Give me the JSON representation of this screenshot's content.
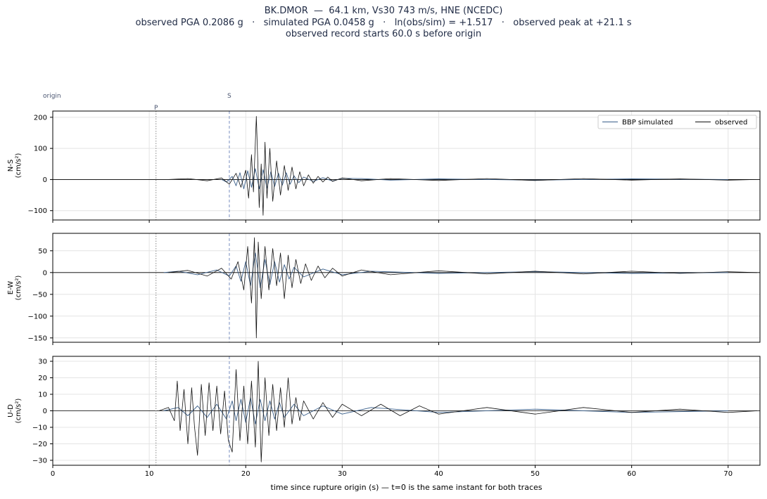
{
  "header": {
    "title_lines": [
      "BK.DMOR  —  64.1 km, Vs30 743 m/s, HNE (NCEDC)",
      "observed PGA 0.2086 g   ·   simulated PGA 0.0458 g   ·   ln(obs/sim) = +1.517   ·   observed peak at +21.1 s",
      "observed record starts 60.0 s before origin"
    ]
  },
  "colors": {
    "observed": "#111111",
    "simulated": "#3a5f8a",
    "p_marker": "#888888",
    "s_marker": "#7a8fc0",
    "grid": "#e4e4e4"
  },
  "chart_data": {
    "type": "line",
    "xlabel": "time since rupture origin (s)   —   t=0 is the same instant for both traces",
    "xlim": [
      0,
      73.3
    ],
    "xticks": [
      0,
      10,
      20,
      30,
      40,
      50,
      60,
      70
    ],
    "grid": true,
    "legend": {
      "placement": "top-right",
      "entries": [
        "BBP simulated",
        "observed"
      ]
    },
    "markers": [
      {
        "label": "origin",
        "t": 0,
        "style": "none"
      },
      {
        "label": "P",
        "t": 10.7,
        "style": "dotted"
      },
      {
        "label": "S",
        "t": 18.3,
        "style": "dashed"
      }
    ],
    "panels": [
      {
        "ylabel": "N-S\n(cm/s²)",
        "ylim": [
          -130,
          220
        ],
        "yticks": [
          -100,
          0,
          100,
          200
        ],
        "series": [
          {
            "name": "BBP simulated",
            "key": "simulated",
            "x": [
              17.5,
              18,
              18.6,
              19,
              19.4,
              19.8,
              20.2,
              20.6,
              21,
              21.4,
              21.8,
              22.2,
              22.6,
              23,
              23.4,
              23.8,
              24.2,
              24.6,
              25,
              25.5,
              26,
              27,
              28,
              29,
              30,
              32,
              35,
              40,
              50,
              60,
              70
            ],
            "y": [
              0,
              -8,
              10,
              -20,
              22,
              -30,
              28,
              -25,
              35,
              -30,
              32,
              -28,
              25,
              -22,
              20,
              -18,
              22,
              -15,
              12,
              -10,
              8,
              -6,
              6,
              -5,
              4,
              3,
              -2,
              2,
              -2,
              2,
              0
            ]
          },
          {
            "name": "observed",
            "key": "observed",
            "x": [
              12,
              14,
              16,
              17.5,
              18.3,
              19,
              19.5,
              20,
              20.3,
              20.6,
              20.8,
              21.1,
              21.4,
              21.6,
              21.8,
              22,
              22.2,
              22.5,
              22.8,
              23.2,
              23.6,
              24,
              24.4,
              24.8,
              25.2,
              25.6,
              26,
              26.5,
              27,
              27.5,
              28,
              28.5,
              29,
              30,
              32,
              35,
              40,
              45,
              50,
              55,
              60,
              65,
              70,
              73
            ],
            "y": [
              0,
              3,
              -4,
              5,
              -15,
              20,
              -25,
              30,
              -60,
              80,
              -40,
              203,
              -90,
              50,
              -115,
              120,
              -60,
              100,
              -70,
              60,
              -50,
              45,
              -35,
              40,
              -30,
              25,
              -20,
              15,
              -12,
              10,
              -8,
              8,
              -6,
              5,
              -4,
              3,
              -3,
              3,
              -3,
              3,
              -2,
              2,
              -2,
              0
            ]
          }
        ]
      },
      {
        "ylabel": "E-W\n(cm/s²)",
        "ylim": [
          -160,
          90
        ],
        "yticks": [
          -150,
          -100,
          -50,
          0,
          50
        ],
        "series": [
          {
            "name": "BBP simulated",
            "key": "simulated",
            "x": [
              11.5,
              13,
              15,
              17,
              18.3,
              19,
              19.5,
              20,
              20.5,
              21,
              21.5,
              22,
              22.5,
              23,
              23.5,
              24,
              24.5,
              25,
              26,
              28,
              30,
              33,
              40,
              50,
              60,
              70
            ],
            "y": [
              0,
              3,
              -5,
              6,
              -8,
              15,
              -20,
              25,
              -30,
              45,
              -35,
              30,
              -28,
              25,
              -22,
              18,
              -15,
              12,
              -10,
              8,
              -5,
              3,
              -2,
              2,
              -2,
              0
            ]
          },
          {
            "name": "observed",
            "key": "observed",
            "x": [
              12,
              14,
              16,
              17.5,
              18.5,
              19.2,
              19.8,
              20.2,
              20.6,
              20.9,
              21.1,
              21.3,
              21.6,
              22,
              22.4,
              22.8,
              23.2,
              23.6,
              24,
              24.4,
              24.8,
              25.2,
              25.7,
              26.2,
              26.8,
              27.5,
              28.2,
              29,
              30,
              32,
              35,
              40,
              45,
              50,
              55,
              60,
              65,
              70,
              73
            ],
            "y": [
              0,
              5,
              -8,
              10,
              -15,
              25,
              -40,
              60,
              -70,
              80,
              -150,
              70,
              -60,
              60,
              -40,
              55,
              -30,
              45,
              -60,
              40,
              -35,
              30,
              -25,
              20,
              -18,
              15,
              -12,
              10,
              -8,
              6,
              -5,
              4,
              -3,
              3,
              -3,
              3,
              -2,
              2,
              0
            ]
          }
        ]
      },
      {
        "ylabel": "U-D\n(cm/s²)",
        "ylim": [
          -33,
          33
        ],
        "yticks": [
          -30,
          -20,
          -10,
          0,
          10,
          20,
          30
        ],
        "series": [
          {
            "name": "BBP simulated",
            "key": "simulated",
            "x": [
              11.5,
              13,
              14,
              15,
              16,
              17,
              18,
              18.6,
              19,
              19.5,
              20,
              20.5,
              21,
              21.5,
              22,
              22.5,
              23,
              23.5,
              24,
              25,
              26,
              28,
              30,
              33,
              40,
              50,
              60,
              70
            ],
            "y": [
              0,
              2,
              -3,
              3,
              -4,
              4,
              -5,
              6,
              -6,
              7,
              -7,
              8,
              -8,
              7,
              -6,
              6,
              -5,
              5,
              -4,
              4,
              -3,
              3,
              -2,
              2,
              -1,
              1,
              -1,
              0
            ]
          },
          {
            "name": "observed",
            "key": "observed",
            "x": [
              11,
              12,
              12.6,
              12.9,
              13.2,
              13.6,
              14,
              14.4,
              14.7,
              15,
              15.4,
              15.8,
              16.2,
              16.6,
              17,
              17.4,
              17.8,
              18.2,
              18.6,
              19,
              19.4,
              19.8,
              20.2,
              20.6,
              21,
              21.3,
              21.6,
              22,
              22.4,
              22.8,
              23.2,
              23.6,
              24,
              24.4,
              24.8,
              25.2,
              25.6,
              26,
              27,
              28,
              29,
              30,
              32,
              34,
              36,
              38,
              40,
              45,
              50,
              55,
              60,
              65,
              70,
              73
            ],
            "y": [
              0,
              2,
              -6,
              18,
              -12,
              13,
              -20,
              14,
              -10,
              -27,
              16,
              -15,
              17,
              -12,
              15,
              -14,
              12,
              -18,
              -25,
              25,
              -18,
              15,
              -20,
              18,
              -22,
              30,
              -31,
              20,
              -15,
              16,
              -12,
              14,
              -10,
              20,
              -8,
              8,
              -6,
              6,
              -5,
              5,
              -4,
              4,
              -3,
              4,
              -3,
              3,
              -2,
              2,
              -2,
              2,
              -1,
              1,
              -1,
              0
            ]
          }
        ]
      }
    ]
  }
}
